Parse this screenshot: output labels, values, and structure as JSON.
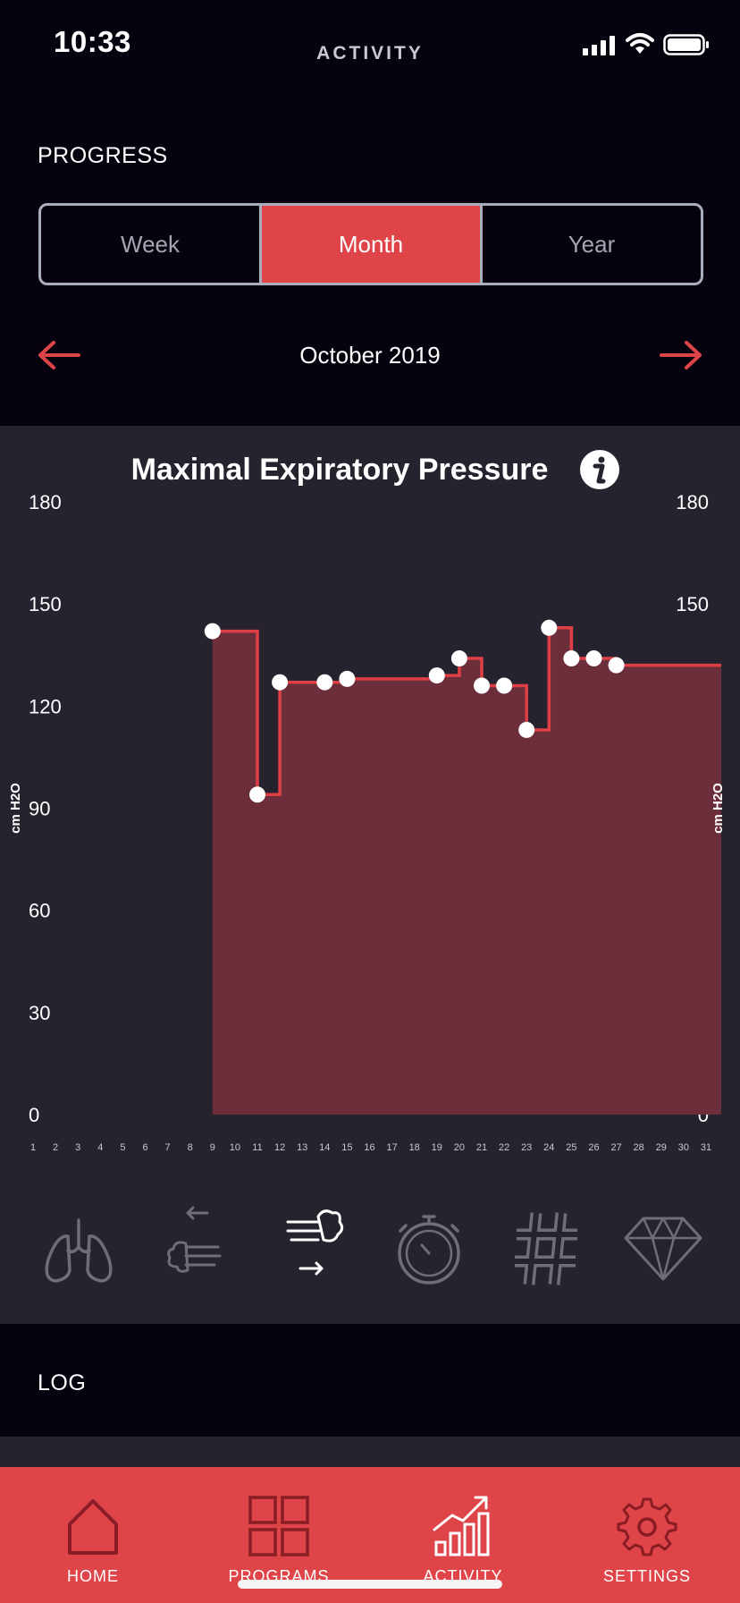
{
  "status_bar": {
    "time": "10:33",
    "screen_title": "ACTIVITY"
  },
  "progress": {
    "label": "PROGRESS",
    "segments": [
      {
        "label": "Week",
        "selected": false
      },
      {
        "label": "Month",
        "selected": true
      },
      {
        "label": "Year",
        "selected": false
      }
    ],
    "period": "October 2019"
  },
  "chart": {
    "title": "Maximal Expiratory Pressure",
    "info_icon": "info-icon",
    "ylabel": "cm H2O"
  },
  "chart_data": {
    "type": "area",
    "title": "Maximal Expiratory Pressure",
    "ylabel": "cm H2O",
    "ylim": [
      0,
      180
    ],
    "yticks": [
      0,
      30,
      60,
      90,
      120,
      150,
      180
    ],
    "x_categories": [
      "1",
      "2",
      "3",
      "4",
      "5",
      "6",
      "7",
      "8",
      "9",
      "10",
      "11",
      "12",
      "13",
      "14",
      "15",
      "16",
      "17",
      "18",
      "19",
      "20",
      "21",
      "22",
      "23",
      "24",
      "25",
      "26",
      "27",
      "28",
      "29",
      "30",
      "31"
    ],
    "step": true,
    "series": [
      {
        "x": [
          9,
          11,
          12,
          14,
          15,
          19,
          20,
          21,
          22,
          23,
          24,
          25,
          26,
          27
        ],
        "y": [
          142,
          94,
          127,
          127,
          128,
          129,
          134,
          126,
          126,
          113,
          143,
          134,
          134,
          132
        ]
      }
    ],
    "extends_to_x": 31,
    "colors": {
      "line": "#de3f45",
      "fill": "#6c2e3b",
      "point": "#ffffff"
    }
  },
  "metric_tabs": [
    {
      "icon": "lungs-icon",
      "selected": false
    },
    {
      "icon": "inhale-icon",
      "selected": false
    },
    {
      "icon": "exhale-icon",
      "selected": true
    },
    {
      "icon": "stopwatch-icon",
      "selected": false
    },
    {
      "icon": "hashtag-icon",
      "selected": false
    },
    {
      "icon": "diamond-icon",
      "selected": false
    }
  ],
  "log": {
    "label": "LOG"
  },
  "tab_bar": {
    "items": [
      {
        "label": "HOME",
        "icon": "home-icon"
      },
      {
        "label": "PROGRAMS",
        "icon": "grid-icon"
      },
      {
        "label": "ACTIVITY",
        "icon": "activity-chart-icon",
        "selected": true
      },
      {
        "label": "SETTINGS",
        "icon": "gear-icon"
      }
    ]
  },
  "colors": {
    "accent": "#df4448",
    "background": "#06030f",
    "panel": "#26232f"
  }
}
